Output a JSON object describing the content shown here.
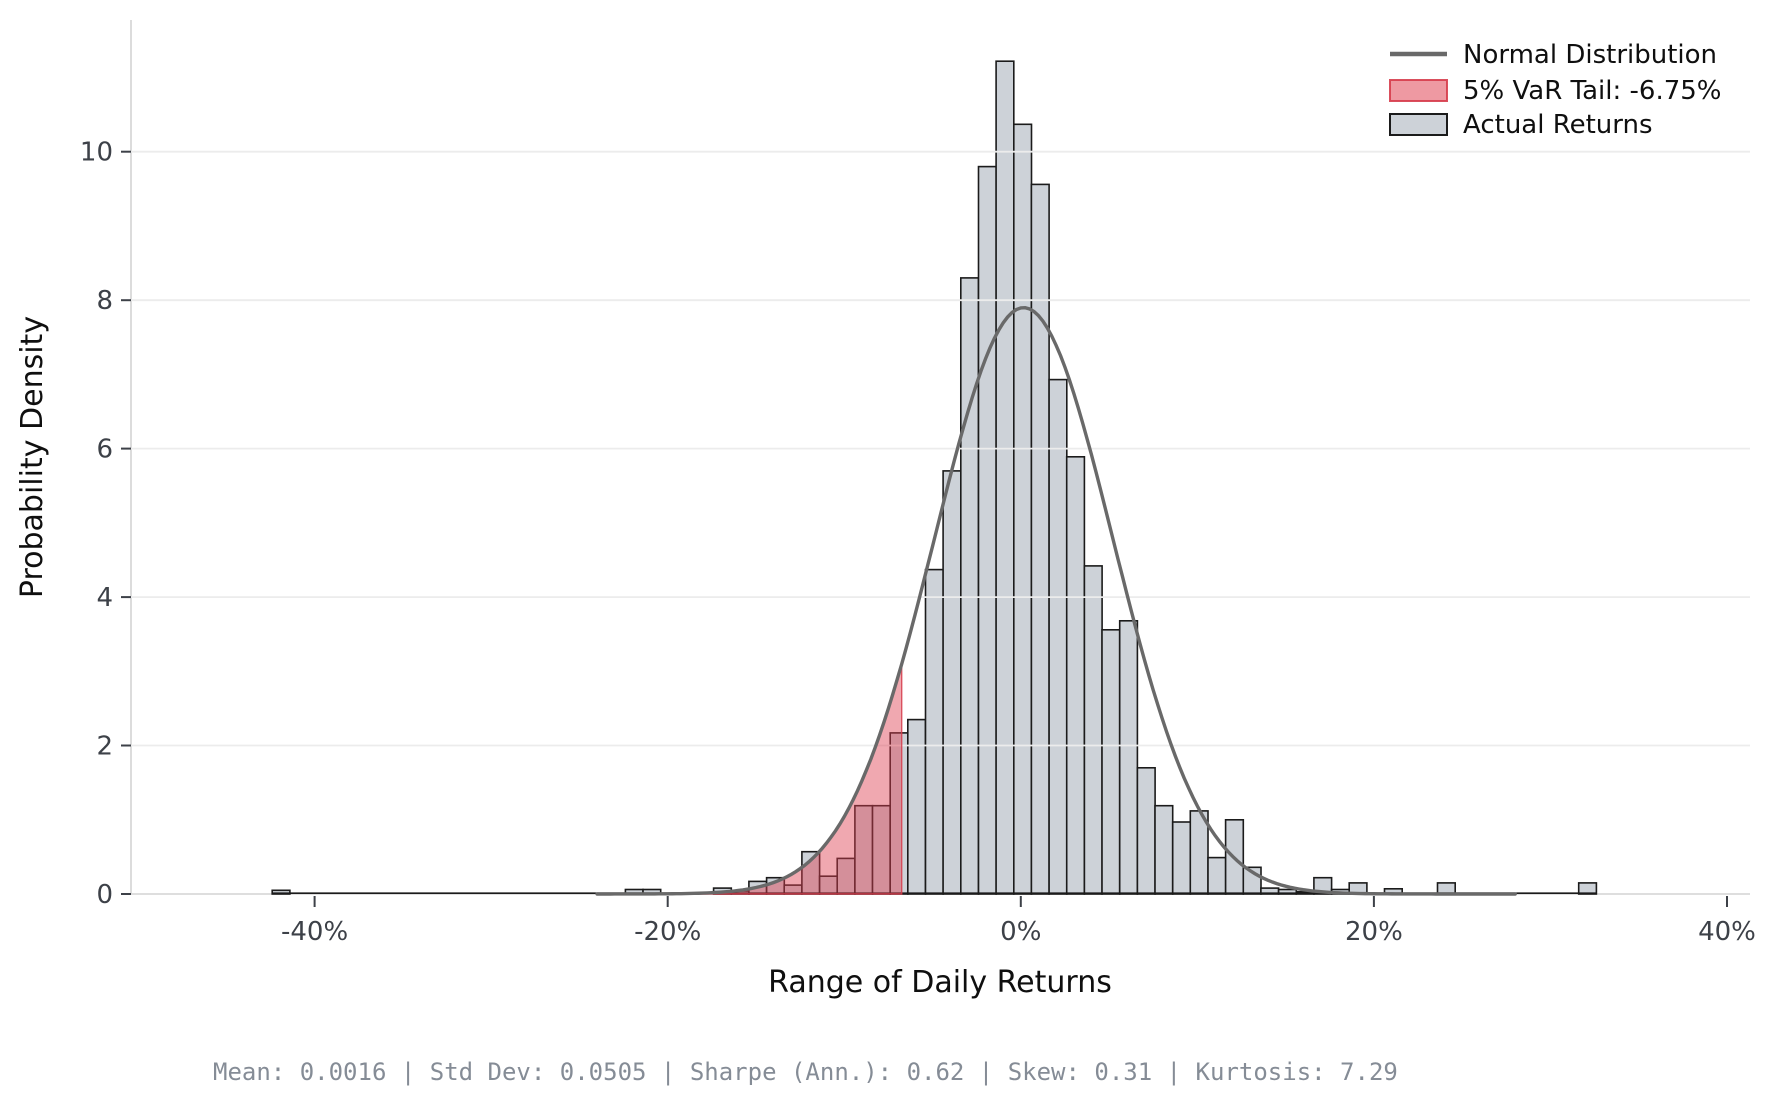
{
  "chart_data": {
    "type": "bar",
    "subtype": "histogram-with-normal-overlay",
    "title": "",
    "xlabel": "Range of Daily Returns",
    "ylabel": "Probability Density",
    "x_tick_values": [
      -40,
      -20,
      0,
      20,
      40
    ],
    "x_tick_labels": [
      "-40%",
      "-20%",
      "0%",
      "20%",
      "40%"
    ],
    "y_tick_values": [
      0,
      2,
      4,
      6,
      8,
      10
    ],
    "y_tick_labels": [
      "0",
      "2",
      "4",
      "6",
      "8",
      "10"
    ],
    "xlim_pct": [
      -50.4,
      41.3
    ],
    "ylim": [
      0,
      11.64
    ],
    "grid": "horizontal",
    "bin_width_pct": 1.0,
    "bins": [
      [
        -42.4,
        0.05
      ],
      [
        -22.4,
        0.06
      ],
      [
        -21.4,
        0.06
      ],
      [
        -17.4,
        0.08
      ],
      [
        -16.4,
        0.04
      ],
      [
        -15.4,
        0.17
      ],
      [
        -14.4,
        0.22
      ],
      [
        -13.4,
        0.12
      ],
      [
        -12.4,
        0.57
      ],
      [
        -11.4,
        0.24
      ],
      [
        -10.4,
        0.48
      ],
      [
        -9.4,
        1.19
      ],
      [
        -8.4,
        1.19
      ],
      [
        -7.4,
        2.17
      ],
      [
        -6.4,
        2.35
      ],
      [
        -5.4,
        4.37
      ],
      [
        -4.4,
        5.7
      ],
      [
        -3.4,
        8.3
      ],
      [
        -2.4,
        9.8
      ],
      [
        -1.4,
        11.22
      ],
      [
        -0.4,
        10.37
      ],
      [
        0.6,
        9.56
      ],
      [
        1.6,
        6.93
      ],
      [
        2.6,
        5.89
      ],
      [
        3.6,
        4.42
      ],
      [
        4.6,
        3.56
      ],
      [
        5.6,
        3.68
      ],
      [
        6.6,
        1.7
      ],
      [
        7.6,
        1.19
      ],
      [
        8.6,
        0.97
      ],
      [
        9.6,
        1.12
      ],
      [
        10.6,
        0.49
      ],
      [
        11.6,
        1.0
      ],
      [
        12.6,
        0.36
      ],
      [
        13.6,
        0.08
      ],
      [
        14.6,
        0.06
      ],
      [
        15.6,
        0.03
      ],
      [
        16.6,
        0.22
      ],
      [
        17.6,
        0.06
      ],
      [
        18.6,
        0.15
      ],
      [
        20.6,
        0.07
      ],
      [
        23.6,
        0.15
      ],
      [
        31.6,
        0.15
      ]
    ],
    "normal_curve": {
      "mean_pct": 0.16,
      "std_pct": 5.05,
      "peak_density": 7.9
    },
    "var_threshold_pct": -6.75,
    "legend": {
      "position": "upper-right",
      "items": [
        {
          "label": "Normal Distribution",
          "swatch": "line"
        },
        {
          "label": "5% VaR Tail: -6.75%",
          "swatch": "red-patch"
        },
        {
          "label": "Actual Returns",
          "swatch": "gray-patch"
        }
      ]
    },
    "stats": {
      "mean": "0.0016",
      "std_dev": "0.0505",
      "sharpe_ann": "0.62",
      "skew": "0.31",
      "kurtosis": "7.29"
    },
    "stats_line": "Mean: 0.0016  |  Std Dev: 0.0505  |  Sharpe (Ann.): 0.62  |  Skew: 0.31  |  Kurtosis: 7.29"
  },
  "colors": {
    "bar_fill": "#cdd2d8",
    "bar_edge": "#1b1b1b",
    "var_fill": "#de3f50",
    "var_fill_alpha": 0.45,
    "var_edge": "#d63c4b",
    "curve": "#696969",
    "grid": "#ececec",
    "spine": "#d9d9d9",
    "tick": "#3d4148",
    "background": "#ffffff"
  }
}
